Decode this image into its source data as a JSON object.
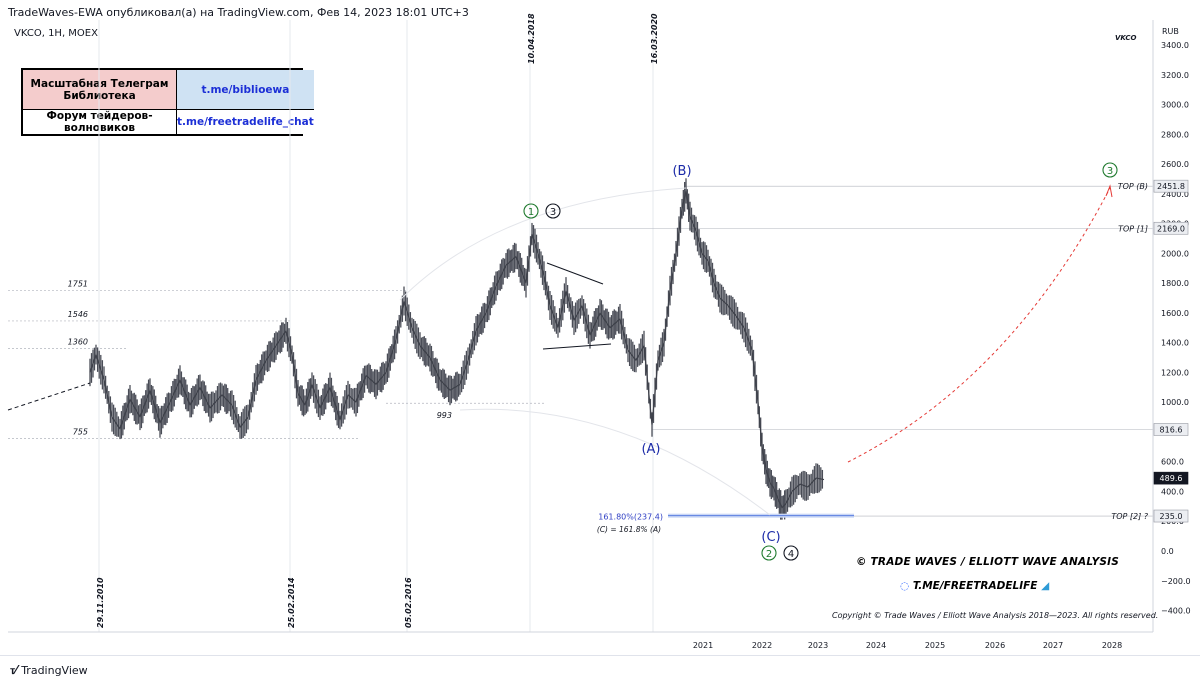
{
  "header": {
    "publisher": "TradeWaves-EWA опубликовал(а) на TradingView.com, Фев 14, 2023 18:01 UTC+3",
    "symbol": "VKCO, 1H, MOEX",
    "ticker_right": "VKCO",
    "currency": "RUB"
  },
  "info_table": {
    "row1_left": "Масштабная Телеграм Библиотека",
    "row1_right": "t.me/biblioewa",
    "row2_left": "Форум тейдеров-волновиков",
    "row2_right": "t.me/freetradelife_chat"
  },
  "branding": {
    "title": "© TRADE WAVES / ELLIOTT WAVE ANALYSIS",
    "link": "T.ME/FREETRADELIFE",
    "copyright": "Copyright © Trade Waves / Elliott Wave Analysis 2018—2023. All rights reserved.",
    "footer_logo": "TradingView"
  },
  "chart_data": {
    "type": "line",
    "y_ticks": [
      3400,
      3200,
      3000,
      2800,
      2600,
      2400,
      2200,
      2000,
      1800,
      1600,
      1400,
      1200,
      1000,
      800,
      600,
      400,
      200,
      0,
      -200,
      -400
    ],
    "y_tick_labels": [
      "3400.0",
      "3200.0",
      "3000.0",
      "2800.0",
      "2600.0",
      "2400.0",
      "2200.0",
      "2000.0",
      "1800.0",
      "1600.0",
      "1400.0",
      "1200.0",
      "1000.0",
      "800.0",
      "600.0",
      "400.0",
      "200.0",
      "0.0",
      "−200.0",
      "−400.0"
    ],
    "ylim": [
      -470,
      3590
    ],
    "x_year_ticks": [
      "2021",
      "2022",
      "2023",
      "2024",
      "2025",
      "2026",
      "2027",
      "2028"
    ],
    "vertical_date_labels": [
      "29.11.2010",
      "25.02.2014",
      "05.02.2016",
      "10.04.2018",
      "16.03.2020"
    ],
    "price_tags": [
      {
        "label": "2451.8",
        "value": 2451.8,
        "style": "light"
      },
      {
        "label": "2169.0",
        "value": 2169.0,
        "style": "light"
      },
      {
        "label": "816.6",
        "value": 816.6,
        "style": "light"
      },
      {
        "label": "489.6",
        "value": 489.6,
        "style": "dark"
      },
      {
        "label": "235.0",
        "value": 235.0,
        "style": "light"
      }
    ],
    "level_labels": [
      {
        "text": "TOP (B)",
        "value": 2451.8
      },
      {
        "text": "TOP [1]",
        "value": 2169.0
      },
      {
        "text": "TOP [2] ?",
        "value": 235.0
      }
    ],
    "left_levels": [
      {
        "text": "1751",
        "value": 1751
      },
      {
        "text": "1546",
        "value": 1546
      },
      {
        "text": "1360",
        "value": 1360
      },
      {
        "text": "993",
        "value": 993
      },
      {
        "text": "755",
        "value": 755
      }
    ],
    "wave_labels": {
      "A": "(A)",
      "B": "(B)",
      "C": "(C)",
      "circled": [
        "1",
        "3",
        "2",
        "4"
      ],
      "target": "3"
    },
    "fib": {
      "label": "161.80%(237.4)",
      "note": "(C) = 161.8% (A)",
      "value": 237.4
    },
    "price_path": [
      [
        90,
        1200
      ],
      [
        96,
        1320
      ],
      [
        104,
        1150
      ],
      [
        112,
        900
      ],
      [
        120,
        820
      ],
      [
        130,
        1020
      ],
      [
        140,
        900
      ],
      [
        150,
        1080
      ],
      [
        160,
        860
      ],
      [
        170,
        1000
      ],
      [
        180,
        1150
      ],
      [
        190,
        980
      ],
      [
        200,
        1100
      ],
      [
        210,
        960
      ],
      [
        222,
        1050
      ],
      [
        232,
        980
      ],
      [
        240,
        830
      ],
      [
        248,
        900
      ],
      [
        256,
        1150
      ],
      [
        266,
        1280
      ],
      [
        276,
        1380
      ],
      [
        286,
        1480
      ],
      [
        292,
        1320
      ],
      [
        298,
        1060
      ],
      [
        305,
        980
      ],
      [
        312,
        1120
      ],
      [
        320,
        960
      ],
      [
        330,
        1100
      ],
      [
        340,
        880
      ],
      [
        348,
        1050
      ],
      [
        356,
        1000
      ],
      [
        366,
        1180
      ],
      [
        376,
        1120
      ],
      [
        386,
        1200
      ],
      [
        396,
        1420
      ],
      [
        404,
        1680
      ],
      [
        412,
        1500
      ],
      [
        420,
        1380
      ],
      [
        430,
        1300
      ],
      [
        440,
        1150
      ],
      [
        450,
        1080
      ],
      [
        460,
        1120
      ],
      [
        468,
        1280
      ],
      [
        476,
        1480
      ],
      [
        486,
        1600
      ],
      [
        496,
        1780
      ],
      [
        506,
        1920
      ],
      [
        516,
        1980
      ],
      [
        526,
        1800
      ],
      [
        532,
        2130
      ],
      [
        538,
        2000
      ],
      [
        544,
        1850
      ],
      [
        550,
        1650
      ],
      [
        558,
        1500
      ],
      [
        566,
        1750
      ],
      [
        574,
        1550
      ],
      [
        582,
        1650
      ],
      [
        590,
        1450
      ],
      [
        600,
        1600
      ],
      [
        610,
        1500
      ],
      [
        620,
        1560
      ],
      [
        628,
        1350
      ],
      [
        636,
        1280
      ],
      [
        644,
        1380
      ],
      [
        652,
        850
      ],
      [
        658,
        1280
      ],
      [
        664,
        1400
      ],
      [
        670,
        1750
      ],
      [
        676,
        2000
      ],
      [
        682,
        2300
      ],
      [
        686,
        2420
      ],
      [
        690,
        2250
      ],
      [
        696,
        2150
      ],
      [
        702,
        2000
      ],
      [
        708,
        1950
      ],
      [
        714,
        1800
      ],
      [
        720,
        1700
      ],
      [
        728,
        1650
      ],
      [
        736,
        1580
      ],
      [
        744,
        1500
      ],
      [
        752,
        1350
      ],
      [
        758,
        1000
      ],
      [
        762,
        700
      ],
      [
        766,
        550
      ],
      [
        770,
        460
      ],
      [
        774,
        420
      ],
      [
        778,
        350
      ],
      [
        782,
        290
      ],
      [
        786,
        320
      ],
      [
        792,
        400
      ],
      [
        800,
        450
      ],
      [
        808,
        430
      ],
      [
        816,
        490
      ],
      [
        824,
        480
      ]
    ]
  }
}
